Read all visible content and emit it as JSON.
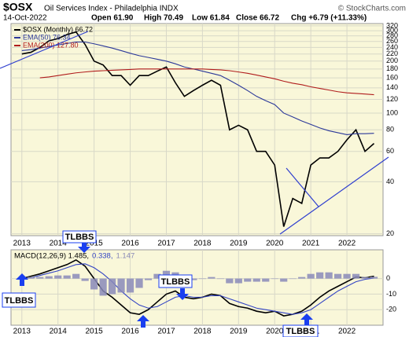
{
  "header": {
    "symbol": "$OSX",
    "name": "Oil Services Index - Philadelphia  INDX",
    "date": "14-Oct-2022",
    "quote": [
      "Open 61.90",
      "High 70.49",
      "Low 61.84",
      "Close 66.72",
      "Chg +6.79 (+11.33%)"
    ],
    "copyright": "© StockCharts.com"
  },
  "annotations": [
    "TLBBS",
    "TLBBS",
    "TLBBS",
    "TLBBS"
  ],
  "chart_data": [
    {
      "type": "line",
      "log": true,
      "grid": true,
      "x": [
        2013,
        2013.25,
        2013.5,
        2013.75,
        2014,
        2014.25,
        2014.5,
        2014.75,
        2015,
        2015.25,
        2015.5,
        2015.75,
        2016,
        2016.25,
        2016.5,
        2016.75,
        2017,
        2017.25,
        2017.5,
        2017.75,
        2018,
        2018.25,
        2018.5,
        2018.75,
        2019,
        2019.25,
        2019.5,
        2019.75,
        2020,
        2020.25,
        2020.5,
        2020.75,
        2021,
        2021.25,
        2021.5,
        2021.75,
        2022,
        2022.25,
        2022.5,
        2022.75
      ],
      "xlim": [
        2012.7,
        2023.0
      ],
      "xticks": [
        2013,
        2014,
        2015,
        2016,
        2017,
        2018,
        2019,
        2020,
        2021,
        2022
      ],
      "ylim": [
        19.5,
        330
      ],
      "yticks": [
        20,
        40,
        60,
        80,
        100,
        120,
        140,
        160,
        180,
        200,
        220,
        240,
        260,
        280,
        300,
        320
      ],
      "series": [
        {
          "name": "$OSX (Monthly) 66.72",
          "color": "#000000",
          "values": [
            220,
            225,
            240,
            262,
            270,
            285,
            295,
            250,
            200,
            190,
            165,
            165,
            145,
            165,
            165,
            175,
            185,
            150,
            125,
            135,
            145,
            155,
            145,
            80,
            85,
            80,
            60,
            60,
            50,
            22,
            32,
            30,
            50,
            55,
            55,
            60,
            70,
            80,
            60,
            66.72
          ]
        },
        {
          "name": "EMA(50) 76.34",
          "color": "#2b3899",
          "values": [
            230,
            233,
            238,
            243,
            248,
            253,
            258,
            258,
            252,
            245,
            238,
            230,
            222,
            215,
            210,
            205,
            200,
            193,
            185,
            180,
            175,
            170,
            165,
            155,
            145,
            135,
            125,
            118,
            112,
            100,
            95,
            90,
            86,
            82,
            79,
            77,
            75,
            76,
            76,
            76.34
          ]
        },
        {
          "name": "EMA(200) 127.80",
          "color": "#b01c1c",
          "values": [
            null,
            null,
            160,
            162,
            165,
            168,
            171,
            173,
            175,
            176,
            177,
            178,
            179,
            180,
            180,
            180,
            180,
            180,
            180,
            180,
            180,
            179,
            178,
            176,
            173,
            170,
            166,
            162,
            158,
            153,
            149,
            146,
            142,
            139,
            136,
            133,
            131,
            130,
            129,
            127.8
          ]
        }
      ]
    },
    {
      "type": "line",
      "grid": true,
      "x": [
        2013,
        2013.25,
        2013.5,
        2013.75,
        2014,
        2014.25,
        2014.5,
        2014.75,
        2015,
        2015.25,
        2015.5,
        2015.75,
        2016,
        2016.25,
        2016.5,
        2016.75,
        2017,
        2017.25,
        2017.5,
        2017.75,
        2018,
        2018.25,
        2018.5,
        2018.75,
        2019,
        2019.25,
        2019.5,
        2019.75,
        2020,
        2020.25,
        2020.5,
        2020.75,
        2021,
        2021.25,
        2021.5,
        2021.75,
        2022,
        2022.25,
        2022.5,
        2022.75
      ],
      "xlim": [
        2012.7,
        2023.0
      ],
      "xticks": [
        2013,
        2014,
        2015,
        2016,
        2017,
        2018,
        2019,
        2020,
        2021,
        2022
      ],
      "ylim": [
        -30,
        18.5
      ],
      "yticks": [
        0,
        -10,
        -20
      ],
      "series": [
        {
          "name": "MACD(12,26,9) 1.485,",
          "color": "#000000",
          "values": [
            0,
            1.5,
            3,
            5,
            7,
            9,
            12,
            8,
            0,
            -8,
            -12,
            -17,
            -22,
            -23,
            -20,
            -15,
            -10,
            -8,
            -12,
            -13,
            -12,
            -10,
            -11,
            -16,
            -18,
            -19,
            -21,
            -22,
            -21,
            -24,
            -23,
            -21,
            -17,
            -12,
            -8,
            -5,
            -2,
            1,
            0.5,
            1.485
          ]
        },
        {
          "name": "0.338,",
          "color": "#3344c4",
          "values": [
            0,
            0.5,
            2,
            3.5,
            5,
            7,
            9,
            9.5,
            7,
            3,
            -2,
            -8,
            -13,
            -17,
            -19,
            -18,
            -15,
            -12,
            -11,
            -12,
            -12,
            -11,
            -11,
            -13,
            -15,
            -17,
            -19,
            -20,
            -21,
            -22,
            -23,
            -22,
            -20,
            -16,
            -12,
            -8,
            -5,
            -2,
            -0.5,
            0.338
          ]
        },
        {
          "name": "1.147",
          "color": "#8a8ab8",
          "bars": true,
          "values": [
            0,
            1,
            1,
            1.5,
            2,
            2,
            3,
            -1.5,
            -7,
            -11,
            -10,
            -9,
            -9,
            -6,
            -1,
            3,
            5,
            4,
            -1,
            -1,
            0,
            1,
            0,
            -3,
            -3,
            -2,
            -2,
            -2,
            0,
            -2,
            0,
            1,
            3,
            4,
            4,
            3,
            3,
            3,
            1,
            1.147
          ]
        }
      ]
    }
  ]
}
